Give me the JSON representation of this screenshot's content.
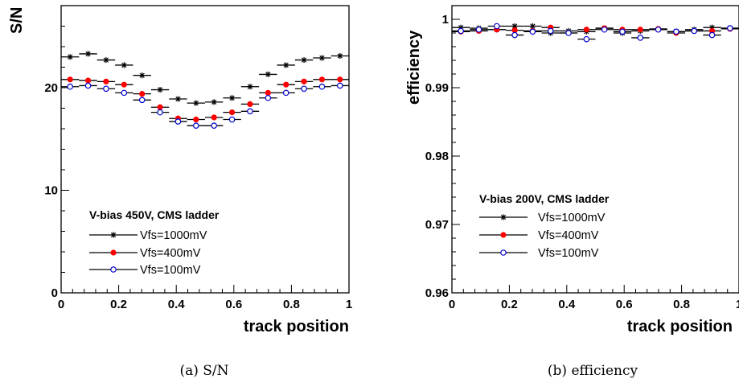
{
  "chart_data": [
    {
      "type": "scatter",
      "title": "",
      "caption": "(a) S/N",
      "xlabel": "track position",
      "ylabel": "S/N",
      "xlim": [
        0,
        1
      ],
      "ylim": [
        0,
        28
      ],
      "xticks": [
        0,
        0.2,
        0.4,
        0.6,
        0.8,
        1
      ],
      "xtick_labels": [
        "0",
        "0.2",
        "0.4",
        "0.6",
        "0.8",
        "1"
      ],
      "yticks": [
        0,
        10,
        20
      ],
      "ytick_labels": [
        "0",
        "10",
        "20"
      ],
      "legend": {
        "title": "V-bias 450V, CMS ladder",
        "placement": "bottom-left"
      },
      "x": [
        0.03125,
        0.09375,
        0.15625,
        0.21875,
        0.28125,
        0.34375,
        0.40625,
        0.46875,
        0.53125,
        0.59375,
        0.65625,
        0.71875,
        0.78125,
        0.84375,
        0.90625,
        0.96875
      ],
      "series": [
        {
          "name": "Vfs=1000mV",
          "marker": "star",
          "color": "#000000",
          "values": [
            23.0,
            23.3,
            22.7,
            22.2,
            21.2,
            19.8,
            18.9,
            18.5,
            18.6,
            19.0,
            20.1,
            21.3,
            22.2,
            22.7,
            22.9,
            23.1
          ]
        },
        {
          "name": "Vfs=400mV",
          "marker": "filled-circle",
          "color": "#ff0000",
          "values": [
            20.8,
            20.7,
            20.6,
            20.3,
            19.4,
            18.1,
            17.0,
            16.9,
            17.1,
            17.6,
            18.4,
            19.5,
            20.3,
            20.6,
            20.8,
            20.8
          ]
        },
        {
          "name": "Vfs=100mV",
          "marker": "open-circle",
          "color": "#0000cc",
          "values": [
            20.1,
            20.2,
            19.9,
            19.5,
            18.8,
            17.6,
            16.7,
            16.3,
            16.3,
            16.9,
            17.7,
            19.0,
            19.5,
            19.9,
            20.1,
            20.2
          ]
        }
      ]
    },
    {
      "type": "scatter",
      "title": "",
      "caption": "(b) efficiency",
      "xlabel": "track position",
      "ylabel": "efficiency",
      "xlim": [
        0,
        1
      ],
      "ylim": [
        0.96,
        1.002
      ],
      "xticks": [
        0,
        0.2,
        0.4,
        0.6,
        0.8,
        1
      ],
      "xtick_labels": [
        "0",
        "0.2",
        "0.4",
        "0.6",
        "0.8",
        "1"
      ],
      "yticks": [
        0.96,
        0.97,
        0.98,
        0.99,
        1
      ],
      "ytick_labels": [
        "0.96",
        "0.97",
        "0.98",
        "0.99",
        "1"
      ],
      "legend": {
        "title": "V-bias 200V, CMS ladder",
        "placement": "bottom-left"
      },
      "x": [
        0.03125,
        0.09375,
        0.15625,
        0.21875,
        0.28125,
        0.34375,
        0.40625,
        0.46875,
        0.53125,
        0.59375,
        0.65625,
        0.71875,
        0.78125,
        0.84375,
        0.90625,
        0.96875
      ],
      "series": [
        {
          "name": "Vfs=1000mV",
          "marker": "star",
          "color": "#000000",
          "values": [
            0.9988,
            0.9987,
            0.9985,
            0.999,
            0.999,
            0.998,
            0.9983,
            0.9982,
            0.9987,
            0.998,
            0.9983,
            0.9985,
            0.9982,
            0.9985,
            0.9988,
            0.9987
          ]
        },
        {
          "name": "Vfs=400mV",
          "marker": "filled-circle",
          "color": "#ff0000",
          "values": [
            0.9982,
            0.9983,
            0.9985,
            0.9984,
            0.9983,
            0.9988,
            0.998,
            0.9985,
            0.9987,
            0.9985,
            0.9985,
            0.9986,
            0.998,
            0.9983,
            0.9983,
            0.9986
          ]
        },
        {
          "name": "Vfs=100mV",
          "marker": "open-circle",
          "color": "#0000cc",
          "values": [
            0.9983,
            0.9985,
            0.999,
            0.9977,
            0.9982,
            0.9983,
            0.998,
            0.9971,
            0.9985,
            0.9982,
            0.9973,
            0.9985,
            0.9982,
            0.9983,
            0.9977,
            0.9987
          ]
        }
      ]
    }
  ]
}
